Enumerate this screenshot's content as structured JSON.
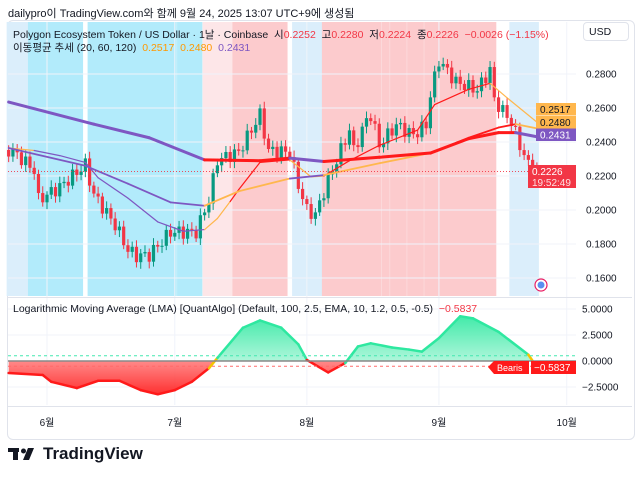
{
  "attribution": "dailypro이 TradingView.com와 함께 9월 24, 2025 13:07 UTC+9에 생성됨",
  "header": {
    "symbol_title": "Polygon Ecosystem Token / US Dollar · 1날 · Coinbase",
    "open_label": "시",
    "open": "0.2252",
    "high_label": "고",
    "high": "0.2280",
    "low_label": "저",
    "low": "0.2224",
    "close_label": "종",
    "close": "0.2226",
    "change": "−0.0026 (−1.15%)",
    "currency": "USD"
  },
  "ma_legend": {
    "label": "이동평균 추세 (20, 60, 120)",
    "ma20": "0.2517",
    "ma60": "0.2480",
    "ma120": "0.2431"
  },
  "lma_legend": {
    "label": "Logarithmic Moving Average (LMA) [QuantAlgo] (Default, 100, 2.5, EMA, 10, 1.2, 0.5, -0.5)",
    "value": "−0.5837"
  },
  "footer": {
    "logo_text": "TradingView"
  },
  "colors": {
    "up": "#089981",
    "down": "#f23645",
    "ma20_orange": "#ffb74d",
    "purple": "#7e57c2",
    "red": "#ff1a1a",
    "blue_band": "#b2ebfb",
    "pale_blue_band": "#dbeefb",
    "red_band": "#fccbcd",
    "pale_red_band": "#fde6e8",
    "lma_up": "#2ee8a0",
    "lma_down": "#ff1a1a"
  },
  "chart_data": [
    {
      "type": "candlestick",
      "title": "Polygon Ecosystem Token / US Dollar · 1날 · Coinbase",
      "interval": "1D",
      "x_ticks": [
        {
          "date": "2025-06-01",
          "label": "6월"
        },
        {
          "date": "2025-07-01",
          "label": "7월"
        },
        {
          "date": "2025-08-01",
          "label": "8월"
        },
        {
          "date": "2025-09-01",
          "label": "9월"
        },
        {
          "date": "2025-10-01",
          "label": "10월"
        }
      ],
      "y_ticks": [
        "0.1600",
        "0.1800",
        "0.2000",
        "0.2200",
        "0.2400",
        "0.2600",
        "0.2800"
      ],
      "ylim": [
        0.152,
        0.293
      ],
      "last_price": "0.2226",
      "countdown": "19:52:49",
      "last_bar": {
        "open": 0.2252,
        "high": 0.228,
        "low": 0.2224,
        "close": 0.2226
      },
      "close_path": [
        [
          "2025-05-23",
          0.2353
        ],
        [
          "2025-05-25",
          0.2324
        ],
        [
          "2025-05-29",
          0.2235
        ],
        [
          "2025-05-30",
          0.206
        ],
        [
          "2025-06-04",
          0.2135
        ],
        [
          "2025-06-10",
          0.2265
        ],
        [
          "2025-06-12",
          0.209
        ],
        [
          "2025-06-17",
          0.1912
        ],
        [
          "2025-06-20",
          0.1765
        ],
        [
          "2025-06-22",
          0.173
        ],
        [
          "2025-06-25",
          0.1735
        ],
        [
          "2025-06-30",
          0.187
        ],
        [
          "2025-07-06",
          0.187
        ],
        [
          "2025-07-09",
          0.206
        ],
        [
          "2025-07-11",
          0.2294
        ],
        [
          "2025-07-16",
          0.2341
        ],
        [
          "2025-07-21",
          0.256
        ],
        [
          "2025-07-23",
          0.235
        ],
        [
          "2025-07-28",
          0.2341
        ],
        [
          "2025-07-30",
          0.2147
        ],
        [
          "2025-08-01",
          0.2
        ],
        [
          "2025-08-03",
          0.1971
        ],
        [
          "2025-08-06",
          0.2176
        ],
        [
          "2025-08-11",
          0.2471
        ],
        [
          "2025-08-12",
          0.235
        ],
        [
          "2025-08-15",
          0.2529
        ],
        [
          "2025-08-16",
          0.2559
        ],
        [
          "2025-08-18",
          0.2382
        ],
        [
          "2025-08-22",
          0.25
        ],
        [
          "2025-08-26",
          0.2441
        ],
        [
          "2025-08-29",
          0.25
        ],
        [
          "2025-08-30",
          0.2676
        ],
        [
          "2025-09-01",
          0.288
        ],
        [
          "2025-09-05",
          0.2753
        ],
        [
          "2025-09-10",
          0.2706
        ],
        [
          "2025-09-13",
          0.2824
        ],
        [
          "2025-09-14",
          0.2647
        ],
        [
          "2025-09-18",
          0.2518
        ],
        [
          "2025-09-20",
          0.2382
        ],
        [
          "2025-09-22",
          0.2265
        ],
        [
          "2025-09-24",
          0.2226
        ]
      ],
      "moving_averages": [
        {
          "name": "MA20",
          "last": "0.2517",
          "width": "thin",
          "points": [
            [
              "2025-05-23",
              0.2365,
              "orange"
            ],
            [
              "2025-05-29",
              0.235,
              "purple"
            ],
            [
              "2025-06-04",
              0.232,
              "purple"
            ],
            [
              "2025-06-10",
              0.228,
              "purple"
            ],
            [
              "2025-06-13",
              0.219,
              "purple"
            ],
            [
              "2025-06-20",
              0.207,
              "purple"
            ],
            [
              "2025-06-27",
              0.193,
              "purple"
            ],
            [
              "2025-07-03",
              0.1875,
              "purple"
            ],
            [
              "2025-07-08",
              0.1885,
              "orange"
            ],
            [
              "2025-07-11",
              0.195,
              "orange"
            ],
            [
              "2025-07-14",
              0.205,
              "red"
            ],
            [
              "2025-07-16",
              0.212,
              "red"
            ],
            [
              "2025-07-21",
              0.228,
              "red"
            ],
            [
              "2025-07-28",
              0.2295,
              "orange"
            ],
            [
              "2025-08-02",
              0.2195,
              "orange"
            ],
            [
              "2025-08-05",
              0.22,
              "red"
            ],
            [
              "2025-08-11",
              0.229,
              "red"
            ],
            [
              "2025-08-18",
              0.238,
              "red"
            ],
            [
              "2025-08-27",
              0.247,
              "red"
            ],
            [
              "2025-08-31",
              0.262,
              "red"
            ],
            [
              "2025-09-08",
              0.271,
              "red"
            ],
            [
              "2025-09-13",
              0.2745,
              "orange"
            ],
            [
              "2025-09-17",
              0.266,
              "orange"
            ],
            [
              "2025-09-24",
              0.2517,
              "orange"
            ]
          ]
        },
        {
          "name": "MA60",
          "last": "0.2480",
          "width": "medium",
          "points": [
            [
              "2025-05-23",
              0.2365,
              "purple"
            ],
            [
              "2025-06-10",
              0.226,
              "purple"
            ],
            [
              "2025-06-20",
              0.2155,
              "purple"
            ],
            [
              "2025-06-30",
              0.2045,
              "purple"
            ],
            [
              "2025-07-08",
              0.2025,
              "orange"
            ],
            [
              "2025-07-16",
              0.211,
              "orange"
            ],
            [
              "2025-07-28",
              0.2185,
              "purple"
            ],
            [
              "2025-08-05",
              0.2205,
              "orange"
            ],
            [
              "2025-08-18",
              0.2275,
              "orange"
            ],
            [
              "2025-08-30",
              0.2335,
              "red"
            ],
            [
              "2025-09-08",
              0.2425,
              "red"
            ],
            [
              "2025-09-15",
              0.2485,
              "red"
            ],
            [
              "2025-09-19",
              0.2505,
              "orange"
            ],
            [
              "2025-09-24",
              0.248,
              "orange"
            ]
          ]
        },
        {
          "name": "MA120",
          "last": "0.2431",
          "width": "thick",
          "points": [
            [
              "2025-05-23",
              0.2635,
              "purple"
            ],
            [
              "2025-06-12",
              0.2505,
              "purple"
            ],
            [
              "2025-06-25",
              0.2425,
              "purple"
            ],
            [
              "2025-07-08",
              0.2295,
              "red"
            ],
            [
              "2025-07-21",
              0.229,
              "red"
            ],
            [
              "2025-07-28",
              0.2305,
              "purple"
            ],
            [
              "2025-08-05",
              0.2285,
              "red"
            ],
            [
              "2025-08-18",
              0.231,
              "red"
            ],
            [
              "2025-08-30",
              0.2335,
              "red"
            ],
            [
              "2025-09-08",
              0.242,
              "red"
            ],
            [
              "2025-09-15",
              0.2455,
              "red"
            ],
            [
              "2025-09-19",
              0.2455,
              "purple"
            ],
            [
              "2025-09-24",
              0.2431,
              "purple"
            ]
          ]
        }
      ],
      "trend_bands": [
        {
          "from": "2025-05-23",
          "to": "2025-05-28",
          "color": "pale_blue"
        },
        {
          "from": "2025-05-28",
          "to": "2025-06-09",
          "color": "blue"
        },
        {
          "from": "2025-06-11",
          "to": "2025-07-01",
          "color": "blue"
        },
        {
          "from": "2025-07-02",
          "to": "2025-07-07",
          "color": "blue"
        },
        {
          "from": "2025-07-08",
          "to": "2025-07-15",
          "color": "pale_red"
        },
        {
          "from": "2025-07-15",
          "to": "2025-07-27",
          "color": "red"
        },
        {
          "from": "2025-07-29",
          "to": "2025-08-05",
          "color": "pale_blue"
        },
        {
          "from": "2025-08-05",
          "to": "2025-08-18",
          "color": "red"
        },
        {
          "from": "2025-08-19",
          "to": "2025-08-20",
          "color": "red"
        },
        {
          "from": "2025-08-21",
          "to": "2025-08-24",
          "color": "red"
        },
        {
          "from": "2025-08-25",
          "to": "2025-08-28",
          "color": "red"
        },
        {
          "from": "2025-08-29",
          "to": "2025-09-14",
          "color": "red"
        },
        {
          "from": "2025-09-18",
          "to": "2025-09-24",
          "color": "pale_blue"
        }
      ]
    },
    {
      "type": "area",
      "title": "Logarithmic Moving Average (LMA) [QuantAlgo] (Default, 100, 2.5, EMA, 10, 1.2, 0.5, -0.5)",
      "y_ticks": [
        "5.0000",
        "2.5000",
        "0.0000",
        "−2.5000"
      ],
      "ylim": [
        -4.2,
        5.8
      ],
      "thresholds": [
        0.5,
        -0.5
      ],
      "last_value": "−0.5837",
      "signal_label": "Bearis",
      "points": [
        [
          "2025-05-23",
          -1.15
        ],
        [
          "2025-05-31",
          -1.35
        ],
        [
          "2025-06-02",
          -2.0
        ],
        [
          "2025-06-08",
          -2.6
        ],
        [
          "2025-06-13",
          -1.9
        ],
        [
          "2025-06-18",
          -1.9
        ],
        [
          "2025-06-23",
          -2.8
        ],
        [
          "2025-06-27",
          -3.2
        ],
        [
          "2025-07-01",
          -2.8
        ],
        [
          "2025-07-05",
          -2.0
        ],
        [
          "2025-07-09",
          -0.7
        ],
        [
          "2025-07-11",
          0.3
        ],
        [
          "2025-07-17",
          3.2
        ],
        [
          "2025-07-21",
          3.9
        ],
        [
          "2025-07-26",
          3.2
        ],
        [
          "2025-07-30",
          1.6
        ],
        [
          "2025-08-01",
          0.1
        ],
        [
          "2025-08-06",
          -1.1
        ],
        [
          "2025-08-10",
          -0.2
        ],
        [
          "2025-08-13",
          1.4
        ],
        [
          "2025-08-16",
          1.7
        ],
        [
          "2025-08-21",
          1.3
        ],
        [
          "2025-08-25",
          1.1
        ],
        [
          "2025-08-28",
          0.9
        ],
        [
          "2025-09-01",
          2.2
        ],
        [
          "2025-09-06",
          4.3
        ],
        [
          "2025-09-09",
          4.1
        ],
        [
          "2025-09-15",
          2.8
        ],
        [
          "2025-09-22",
          0.6
        ],
        [
          "2025-09-24",
          -0.5837
        ]
      ]
    }
  ]
}
